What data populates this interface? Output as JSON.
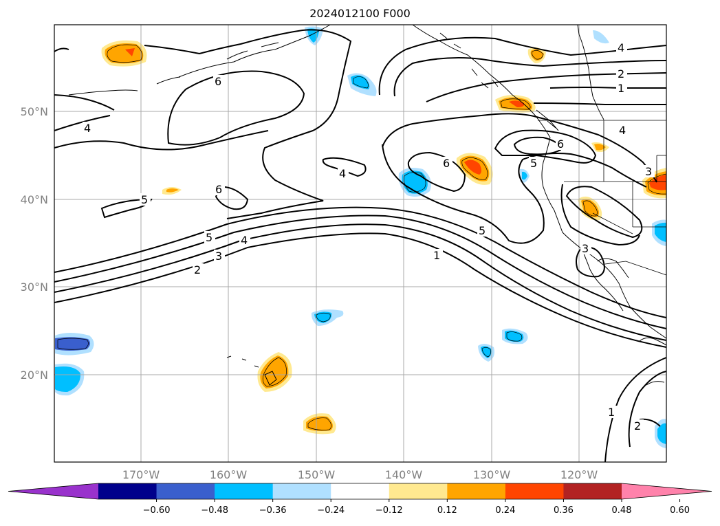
{
  "title": "2024012100 F000",
  "map": {
    "lon_ticks": [
      "170°W",
      "160°W",
      "150°W",
      "140°W",
      "130°W",
      "120°W"
    ],
    "lat_ticks": [
      "50°N",
      "40°N",
      "30°N",
      "20°N"
    ],
    "gridlines": true,
    "contour_line_color": "#000000",
    "contour_labels": [
      "6",
      "4",
      "5",
      "6",
      "6",
      "4",
      "5",
      "6",
      "4",
      "2",
      "1",
      "5",
      "4",
      "3",
      "2",
      "1",
      "3",
      "3",
      "5",
      "4",
      "1",
      "2"
    ]
  },
  "colorbar": {
    "levels": [
      "−0.60",
      "−0.48",
      "−0.36",
      "−0.24",
      "−0.12",
      "0.12",
      "0.24",
      "0.36",
      "0.48",
      "0.60"
    ],
    "colors": [
      "#9932cc",
      "#00008b",
      "#3a5fcd",
      "#00bfff",
      "#b0e0ff",
      "#ffffff",
      "#ffe990",
      "#ffa500",
      "#ff4500",
      "#b22222",
      "#ff82ab"
    ],
    "extend": "both"
  }
}
